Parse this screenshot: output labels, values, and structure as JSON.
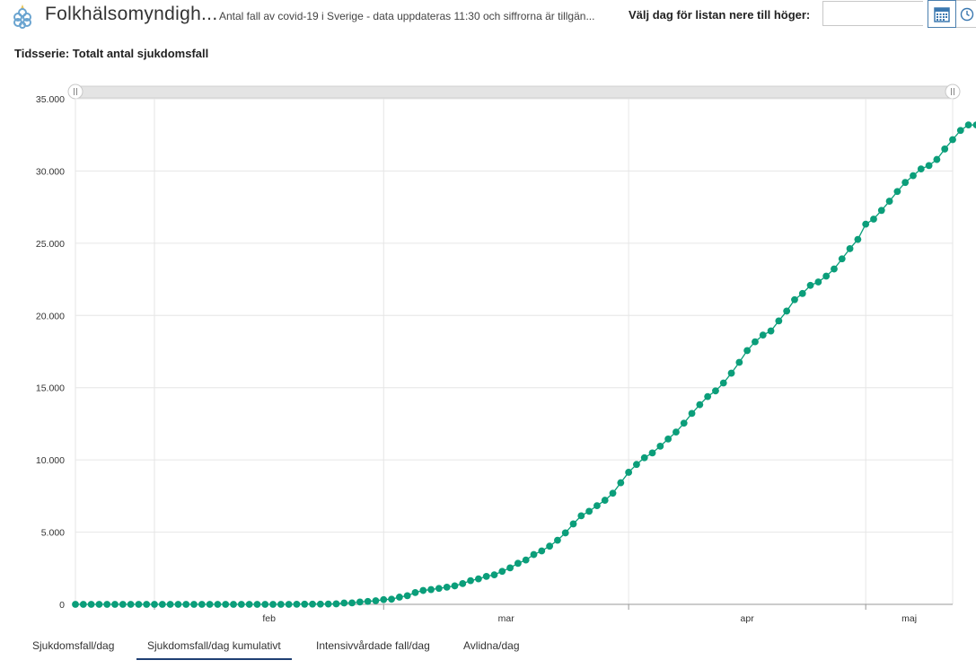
{
  "header": {
    "logo_icon": "folkhalsomyndigheten-logo-icon",
    "title": "Folkhälsomyndigh...",
    "subtitle": "Antal fall av covid-19 i Sverige - data uppdateras 11:30 och siffrorna är tillgän...",
    "day_picker_label": "Välj dag för listan nere till höger:",
    "date_value": "",
    "calendar_icon": "calendar-icon",
    "clock_icon": "clock-icon"
  },
  "chart_title": "Tidsserie: Totalt antal sjukdomsfall",
  "colors": {
    "series": "#0b9e7a",
    "grid": "#e6e6e6",
    "axis": "#999999",
    "active_tab": "#1f3f73"
  },
  "chart_data": {
    "type": "line",
    "title": "Tidsserie: Totalt antal sjukdomsfall",
    "xlabel": "",
    "ylabel": "",
    "x_tick_labels": [
      "feb",
      "mar",
      "apr",
      "maj"
    ],
    "y_tick_labels": [
      "0",
      "5.000",
      "10.000",
      "15.000",
      "20.000",
      "25.000",
      "30.000",
      "35.000"
    ],
    "ylim": [
      0,
      35000
    ],
    "xlim": [
      "2020-01-22",
      "2020-05-12"
    ],
    "grid": true,
    "start_date": "2020-01-22",
    "series": [
      {
        "values": [
          1,
          1,
          1,
          1,
          1,
          1,
          1,
          1,
          1,
          1,
          1,
          1,
          1,
          1,
          1,
          1,
          1,
          1,
          1,
          1,
          1,
          1,
          1,
          1,
          1,
          1,
          1,
          2,
          7,
          12,
          14,
          15,
          21,
          35,
          94,
          101,
          161,
          203,
          248,
          326,
          355,
          500,
          599,
          814,
          961,
          1022,
          1103,
          1190,
          1279,
          1439,
          1639,
          1763,
          1934,
          2046,
          2286,
          2526,
          2840,
          3069,
          3447,
          3700,
          4028,
          4435,
          4947,
          5568,
          6131,
          6443,
          6830,
          7206,
          7693,
          8419,
          9141,
          9685,
          10151,
          10483,
          10948,
          11445,
          11927,
          12540,
          13216,
          13822,
          14385,
          14777,
          15322,
          16004,
          16755,
          17567,
          18177,
          18640,
          18926,
          19621,
          20302,
          21092,
          21520,
          22082,
          22317,
          22721,
          23216,
          23918,
          24623,
          25265,
          26322,
          26670,
          27272,
          27909,
          28582,
          29207,
          29677,
          30143,
          30377,
          30799,
          31523,
          32172,
          32809,
          33188,
          33188
        ]
      }
    ]
  },
  "tabs": [
    {
      "label": "Sjukdomsfall/dag",
      "active": false
    },
    {
      "label": "Sjukdomsfall/dag kumulativt",
      "active": true
    },
    {
      "label": "Intensivvårdade fall/dag",
      "active": false
    },
    {
      "label": "Avlidna/dag",
      "active": false
    }
  ]
}
